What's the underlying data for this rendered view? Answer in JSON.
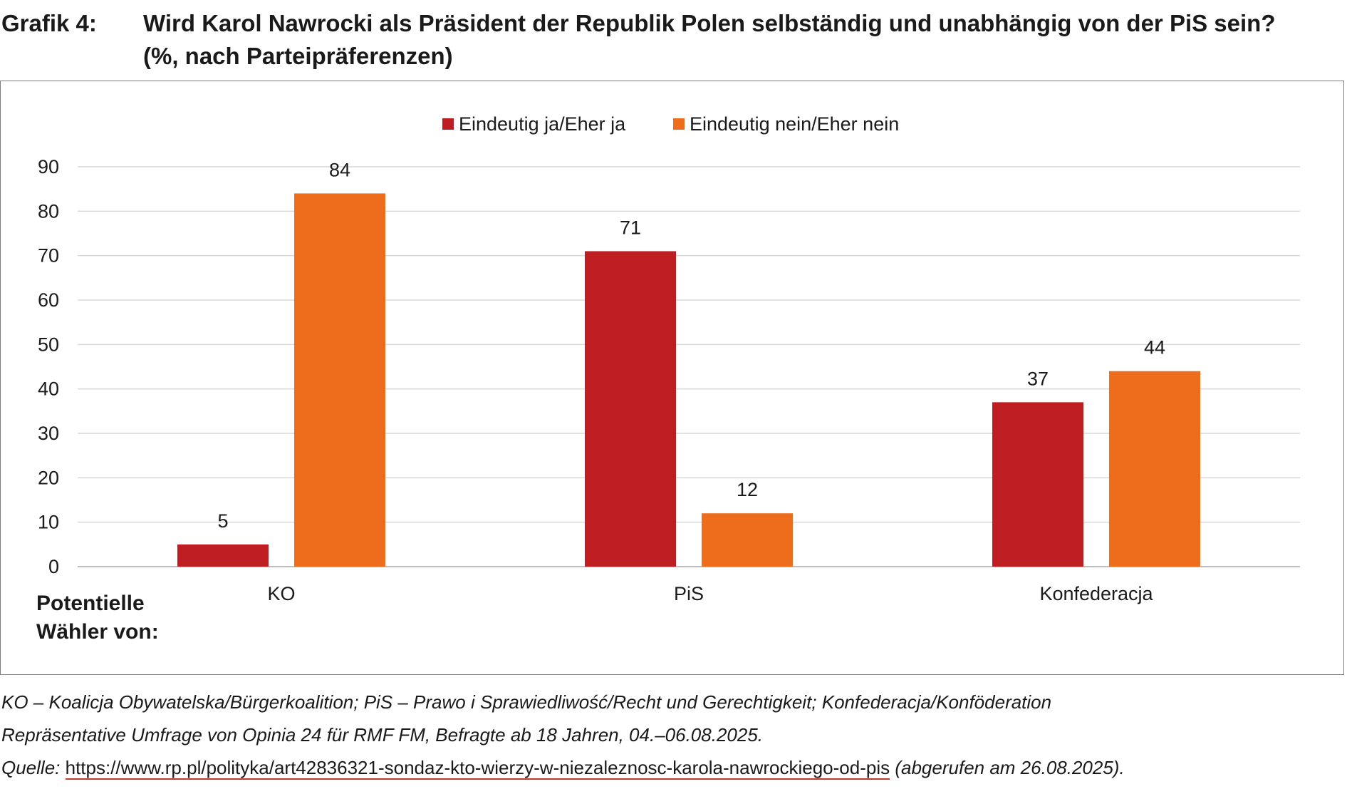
{
  "title_label": "Grafik 4:",
  "title_line1": "Wird Karol Nawrocki als Präsident der Republik Polen selbständig und unabhängig von der PiS sein?",
  "title_line2": "(%, nach Parteipräferenzen)",
  "notes": {
    "abbrev": "KO – Koalicja Obywatelska/Bürgerkoalition; PiS – Prawo i Sprawiedliwość/Recht und Gerechtigkeit; Konfederacja/Konföderation",
    "survey": "Repräsentative Umfrage von Opinia 24 für RMF FM, Befragte ab 18 Jahren, 04.–06.08.2025.",
    "source_prefix": "Quelle: ",
    "source_url": "https://www.rp.pl/polityka/art42836321-sondaz-kto-wierzy-w-niezaleznosc-karola-nawrockiego-od-pis",
    "source_suffix": " (abgerufen am 26.08.2025)."
  },
  "colors": {
    "yes": "#be1e22",
    "no": "#ed6d1d",
    "grid": "#d9d9d9",
    "axis": "#bfbfbf",
    "text": "#1a1a1a"
  },
  "chart_data": {
    "type": "bar",
    "title": "Wird Karol Nawrocki als Präsident der Republik Polen selbständig und unabhängig von der PiS sein? (%, nach Parteipräferenzen)",
    "xlabel": "Potentielle Wähler von:",
    "ylabel": "",
    "ylim": [
      0,
      90
    ],
    "yticks": [
      0,
      10,
      20,
      30,
      40,
      50,
      60,
      70,
      80,
      90
    ],
    "grid": true,
    "legend_position": "top",
    "categories": [
      "KO",
      "PiS",
      "Konfederacja"
    ],
    "series": [
      {
        "name": "Eindeutig ja/Eher ja",
        "color": "#be1e22",
        "values": [
          5,
          71,
          37
        ]
      },
      {
        "name": "Eindeutig nein/Eher nein",
        "color": "#ed6d1d",
        "values": [
          84,
          12,
          44
        ]
      }
    ]
  }
}
